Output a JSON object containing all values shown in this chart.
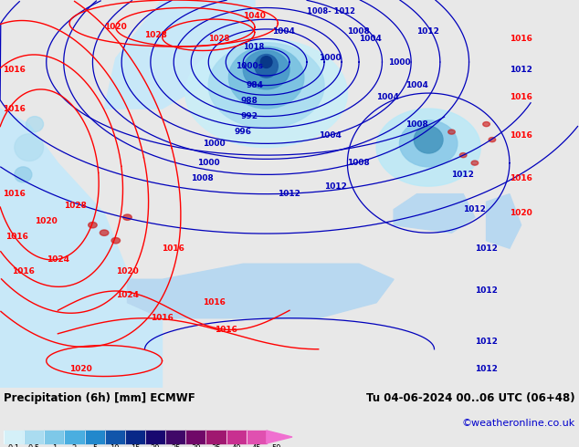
{
  "title_left": "Precipitation (6h) [mm] ECMWF",
  "title_right": "Tu 04-06-2024 00..06 UTC (06+48)",
  "credit": "©weatheronline.co.uk",
  "colorbar_values": [
    "0.1",
    "0.5",
    "1",
    "2",
    "5",
    "10",
    "15",
    "20",
    "25",
    "30",
    "35",
    "40",
    "45",
    "50"
  ],
  "colorbar_colors": [
    "#d4f0f8",
    "#aadcf0",
    "#7ec8e8",
    "#4aaee0",
    "#2288cc",
    "#1155aa",
    "#082888",
    "#180870",
    "#400868",
    "#700868",
    "#a01870",
    "#c83090",
    "#e050b0",
    "#f070d0",
    "#ff00ff"
  ],
  "land_color": "#b8d890",
  "sea_color": "#c8e8f8",
  "bg_color": "#e8e8e8",
  "fig_width": 6.34,
  "fig_height": 4.9,
  "dpi": 100
}
